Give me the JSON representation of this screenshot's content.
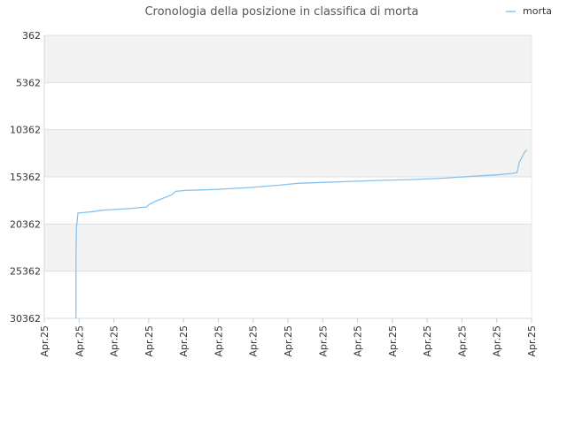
{
  "chart_data": {
    "type": "line",
    "title": "Cronologia della posizione in classifica di morta",
    "xlabel": "",
    "ylabel": "",
    "y_reversed": true,
    "ylim": [
      30362,
      362
    ],
    "y_ticks": [
      "362",
      "5362",
      "10362",
      "15362",
      "20362",
      "25362",
      "30362"
    ],
    "x_tick_labels": [
      "Apr.25",
      "Apr.25",
      "Apr.25",
      "Apr.25",
      "Apr.25",
      "Apr.25",
      "Apr.25",
      "Apr.25",
      "Apr.25",
      "Apr.25",
      "Apr.25",
      "Apr.25",
      "Apr.25",
      "Apr.25",
      "Apr.25"
    ],
    "grid": "horizontal, alternating bands",
    "legend_position": "top-right",
    "series": [
      {
        "name": "morta",
        "color": "#88c3f0",
        "points": [
          [
            0.065,
            30362
          ],
          [
            0.065,
            23800
          ],
          [
            0.066,
            20700
          ],
          [
            0.067,
            20300
          ],
          [
            0.069,
            19200
          ],
          [
            0.08,
            19150
          ],
          [
            0.1,
            19050
          ],
          [
            0.12,
            18900
          ],
          [
            0.15,
            18800
          ],
          [
            0.18,
            18700
          ],
          [
            0.21,
            18550
          ],
          [
            0.215,
            18300
          ],
          [
            0.23,
            17900
          ],
          [
            0.26,
            17300
          ],
          [
            0.27,
            16900
          ],
          [
            0.29,
            16800
          ],
          [
            0.35,
            16700
          ],
          [
            0.42,
            16500
          ],
          [
            0.48,
            16250
          ],
          [
            0.52,
            16050
          ],
          [
            0.6,
            15900
          ],
          [
            0.68,
            15750
          ],
          [
            0.75,
            15650
          ],
          [
            0.82,
            15500
          ],
          [
            0.88,
            15300
          ],
          [
            0.93,
            15150
          ],
          [
            0.96,
            15000
          ],
          [
            0.97,
            14900
          ],
          [
            0.975,
            13800
          ],
          [
            0.985,
            12800
          ],
          [
            0.99,
            12500
          ]
        ]
      }
    ]
  }
}
